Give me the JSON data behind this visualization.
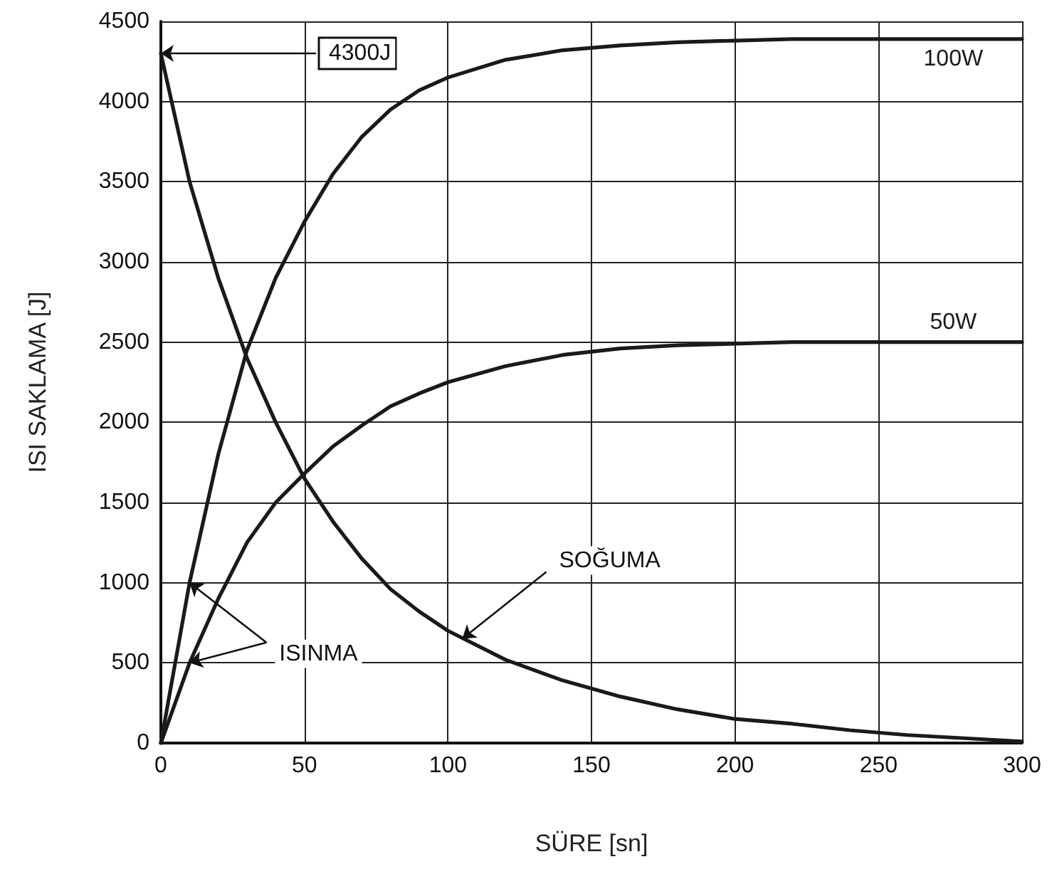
{
  "chart_data": {
    "type": "line",
    "xlabel": "SÜRE [sn]",
    "ylabel": "ISI SAKLAMA [J]",
    "x": [
      0,
      10,
      20,
      30,
      40,
      50,
      60,
      70,
      80,
      90,
      100,
      120,
      140,
      160,
      180,
      200,
      220,
      240,
      260,
      280,
      300
    ],
    "series": [
      {
        "name": "100W",
        "color": "#1a1a1a",
        "values": [
          0,
          1000,
          1800,
          2450,
          2900,
          3250,
          3550,
          3780,
          3950,
          4070,
          4150,
          4260,
          4320,
          4350,
          4370,
          4380,
          4390,
          4390,
          4390,
          4390,
          4390
        ]
      },
      {
        "name": "50W",
        "color": "#1a1a1a",
        "values": [
          0,
          500,
          900,
          1250,
          1500,
          1680,
          1850,
          1980,
          2100,
          2180,
          2250,
          2350,
          2420,
          2460,
          2480,
          2490,
          2500,
          2500,
          2500,
          2500,
          2500
        ]
      },
      {
        "color": "#1a1a1a",
        "values": [
          4300,
          3500,
          2900,
          2400,
          2000,
          1650,
          1380,
          1150,
          960,
          820,
          700,
          520,
          390,
          290,
          210,
          150,
          120,
          80,
          50,
          30,
          10
        ]
      }
    ],
    "annotations": [
      {
        "text": "4300J",
        "x": 0,
        "y": 4300
      },
      {
        "text": "SOĞUMA",
        "x": 105,
        "y": 650
      },
      {
        "text": "ISINMA",
        "x": 10,
        "y": 1000
      }
    ],
    "xlim": [
      0,
      300
    ],
    "xticks": [
      0,
      50,
      100,
      150,
      200,
      250,
      300
    ],
    "ylim": [
      0,
      4500
    ],
    "yticks": [
      0,
      500,
      1000,
      1500,
      2000,
      2500,
      3000,
      3500,
      4000,
      4500
    ],
    "grid": true,
    "legend": false,
    "marker": "none",
    "line_style": "solid"
  }
}
